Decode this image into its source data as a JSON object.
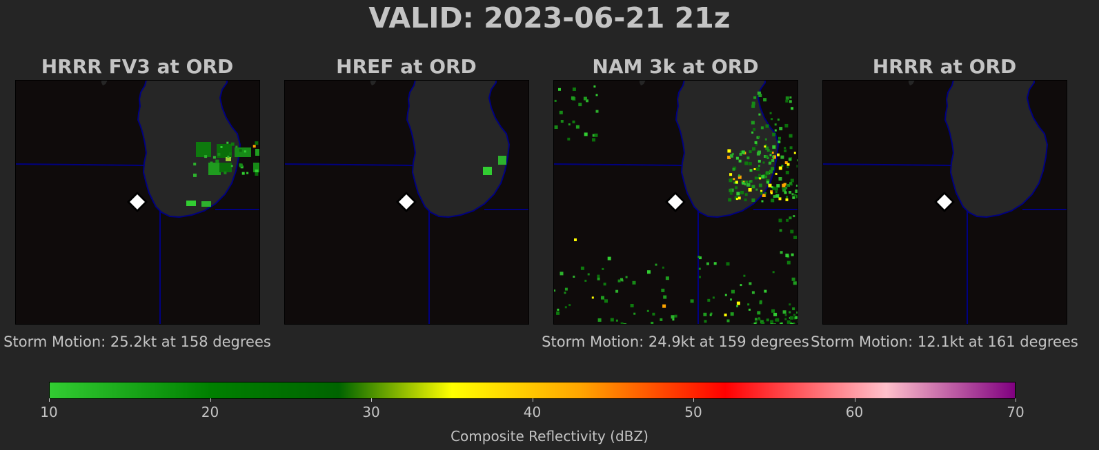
{
  "title": "VALID: 2023-06-21 21z",
  "panels": [
    {
      "title": "HRRR FV3 at ORD",
      "motion": "Storm Motion: 25.2kt at 158 degrees",
      "echo": "fv3"
    },
    {
      "title": "HREF at ORD",
      "motion": "",
      "echo": "href"
    },
    {
      "title": "NAM 3k at ORD",
      "motion": "Storm Motion: 24.9kt at 159 degrees",
      "echo": "nam"
    },
    {
      "title": "HRRR at ORD",
      "motion": "Storm Motion: 12.1kt at 161 degrees",
      "echo": "none"
    }
  ],
  "colorbar": {
    "label": "Composite Reflectivity (dBZ)",
    "min": 10,
    "max": 70,
    "ticks": [
      "10",
      "20",
      "30",
      "40",
      "50",
      "60",
      "70"
    ],
    "stops": [
      {
        "value": 10,
        "color": "#32cd32"
      },
      {
        "value": 20,
        "color": "#008000"
      },
      {
        "value": 28,
        "color": "#006400"
      },
      {
        "value": 35,
        "color": "#ffff00"
      },
      {
        "value": 43,
        "color": "#ffa500"
      },
      {
        "value": 52,
        "color": "#ff0000"
      },
      {
        "value": 62,
        "color": "#ffc0cb"
      },
      {
        "value": 70,
        "color": "#800080"
      }
    ]
  },
  "colors": {
    "background": "#252525",
    "map_background": "#0f0b0b",
    "lake": "#262626",
    "boundaries": "#000080",
    "station_marker": "#ffffff"
  },
  "station_marker_icon": "diamond-icon"
}
